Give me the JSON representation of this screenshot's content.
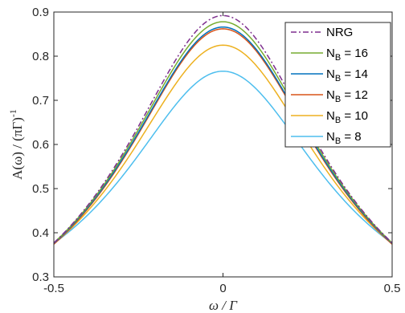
{
  "chart_data": {
    "type": "line",
    "xlabel": "ω / Γ",
    "ylabel_main": "A(ω) / (πΓ)",
    "ylabel_sup": "-1",
    "xlim": [
      -0.5,
      0.5
    ],
    "ylim": [
      0.3,
      0.9
    ],
    "xticks": [
      "-0.5",
      "0",
      "0.5"
    ],
    "yticks": [
      "0.3",
      "0.4",
      "0.5",
      "0.6",
      "0.7",
      "0.8",
      "0.9"
    ],
    "legend_position": "top-right",
    "series": [
      {
        "name": "NRG",
        "legend_main": "NRG",
        "legend_sub": "",
        "legend_suffix": "",
        "peak": 0.892,
        "edge": 0.377,
        "color": "#7E2F8E",
        "dash": "dashdot"
      },
      {
        "name": "N_B = 16",
        "legend_main": "N",
        "legend_sub": "B",
        "legend_suffix": " = 16",
        "peak": 0.878,
        "edge": 0.377,
        "color": "#77AC30",
        "dash": "solid"
      },
      {
        "name": "N_B = 14",
        "legend_main": "N",
        "legend_sub": "B",
        "legend_suffix": " = 14",
        "peak": 0.866,
        "edge": 0.376,
        "color": "#0072BD",
        "dash": "solid"
      },
      {
        "name": "N_B = 12",
        "legend_main": "N",
        "legend_sub": "B",
        "legend_suffix": " = 12",
        "peak": 0.862,
        "edge": 0.374,
        "color": "#D95319",
        "dash": "solid"
      },
      {
        "name": "N_B = 10",
        "legend_main": "N",
        "legend_sub": "B",
        "legend_suffix": " = 10",
        "peak": 0.825,
        "edge": 0.375,
        "color": "#EDB120",
        "dash": "solid"
      },
      {
        "name": "N_B = 8",
        "legend_main": "N",
        "legend_sub": "B",
        "legend_suffix": " = 8",
        "peak": 0.766,
        "edge": 0.376,
        "color": "#4DBEEE",
        "dash": "solid"
      }
    ]
  }
}
